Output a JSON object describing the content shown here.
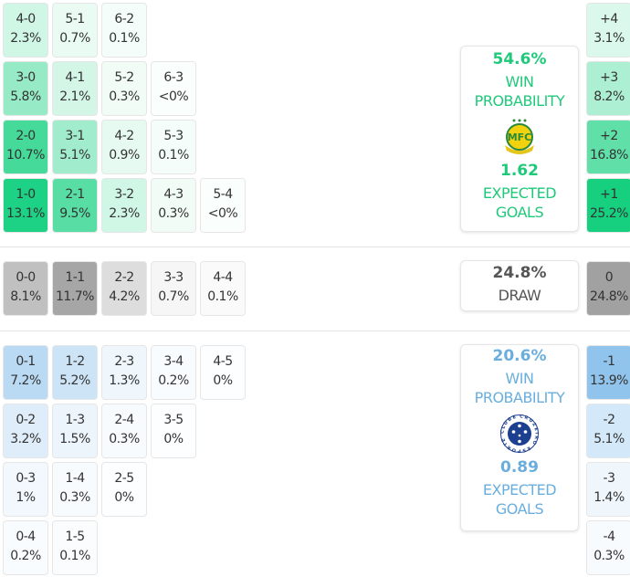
{
  "home": {
    "grid": [
      [
        {
          "score": "4-0",
          "pct": "2.3%"
        },
        {
          "score": "5-1",
          "pct": "0.7%"
        },
        {
          "score": "6-2",
          "pct": "0.1%"
        }
      ],
      [
        {
          "score": "3-0",
          "pct": "5.8%"
        },
        {
          "score": "4-1",
          "pct": "2.1%"
        },
        {
          "score": "5-2",
          "pct": "0.3%"
        },
        {
          "score": "6-3",
          "pct": "<0%"
        }
      ],
      [
        {
          "score": "2-0",
          "pct": "10.7%"
        },
        {
          "score": "3-1",
          "pct": "5.1%"
        },
        {
          "score": "4-2",
          "pct": "0.9%"
        },
        {
          "score": "5-3",
          "pct": "0.1%"
        }
      ],
      [
        {
          "score": "1-0",
          "pct": "13.1%"
        },
        {
          "score": "2-1",
          "pct": "9.5%"
        },
        {
          "score": "3-2",
          "pct": "2.3%"
        },
        {
          "score": "4-3",
          "pct": "0.3%"
        },
        {
          "score": "5-4",
          "pct": "<0%"
        }
      ]
    ],
    "margins": [
      {
        "score": "+4",
        "pct": "3.1%"
      },
      {
        "score": "+3",
        "pct": "8.2%"
      },
      {
        "score": "+2",
        "pct": "16.8%"
      },
      {
        "score": "+1",
        "pct": "25.2%"
      }
    ],
    "win_pct": "54.6%",
    "win_label_1": "WIN",
    "win_label_2": "PROBABILITY",
    "xg": "1.62",
    "xg_label_1": "EXPECTED",
    "xg_label_2": "GOALS",
    "crest_text": "MFC",
    "color": "#14d07f"
  },
  "draw": {
    "grid": [
      [
        {
          "score": "0-0",
          "pct": "8.1%"
        },
        {
          "score": "1-1",
          "pct": "11.7%"
        },
        {
          "score": "2-2",
          "pct": "4.2%"
        },
        {
          "score": "3-3",
          "pct": "0.7%"
        },
        {
          "score": "4-4",
          "pct": "0.1%"
        }
      ]
    ],
    "margins": [
      {
        "score": "0",
        "pct": "24.8%"
      }
    ],
    "pct": "24.8%",
    "label": "DRAW",
    "color": "#9c9c9c"
  },
  "away": {
    "grid": [
      [
        {
          "score": "0-1",
          "pct": "7.2%"
        },
        {
          "score": "1-2",
          "pct": "5.2%"
        },
        {
          "score": "2-3",
          "pct": "1.3%"
        },
        {
          "score": "3-4",
          "pct": "0.2%"
        },
        {
          "score": "4-5",
          "pct": "0%"
        }
      ],
      [
        {
          "score": "0-2",
          "pct": "3.2%"
        },
        {
          "score": "1-3",
          "pct": "1.5%"
        },
        {
          "score": "2-4",
          "pct": "0.3%"
        },
        {
          "score": "3-5",
          "pct": "0%"
        }
      ],
      [
        {
          "score": "0-3",
          "pct": "1%"
        },
        {
          "score": "1-4",
          "pct": "0.3%"
        },
        {
          "score": "2-5",
          "pct": "0%"
        }
      ],
      [
        {
          "score": "0-4",
          "pct": "0.2%"
        },
        {
          "score": "1-5",
          "pct": "0.1%"
        }
      ]
    ],
    "margins": [
      {
        "score": "-1",
        "pct": "13.9%"
      },
      {
        "score": "-2",
        "pct": "5.1%"
      },
      {
        "score": "-3",
        "pct": "1.4%"
      },
      {
        "score": "-4",
        "pct": "0.3%"
      }
    ],
    "win_pct": "20.6%",
    "win_label_1": "WIN",
    "win_label_2": "PROBABILITY",
    "xg": "0.89",
    "xg_label_1": "EXPECTED",
    "xg_label_2": "GOALS",
    "crest_text": "CRUZEIRO ESPORTE CLUBE",
    "color": "#8ec3ec"
  }
}
